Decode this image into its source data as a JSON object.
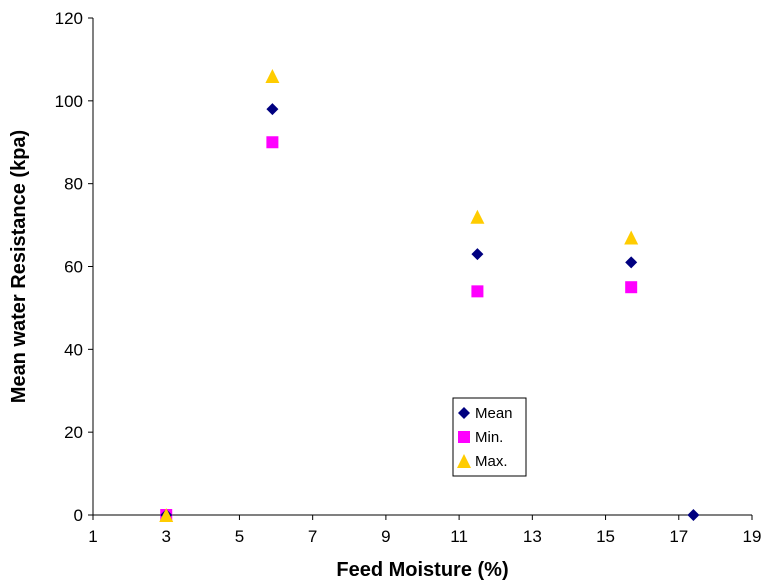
{
  "chart_data": {
    "type": "scatter",
    "title": "",
    "xlabel": "Feed Moisture (%)",
    "ylabel": "Mean water Resistance (kpa)",
    "xlim": [
      1,
      19
    ],
    "ylim": [
      0,
      120
    ],
    "xticks": [
      1,
      3,
      5,
      7,
      9,
      11,
      13,
      15,
      17,
      19
    ],
    "yticks": [
      0,
      20,
      40,
      60,
      80,
      100,
      120
    ],
    "grid": false,
    "legend_position": "center-bottom",
    "series": [
      {
        "name": "Mean",
        "marker": "diamond",
        "color": "#000080",
        "points": [
          [
            3,
            0
          ],
          [
            5.9,
            98
          ],
          [
            11.5,
            63
          ],
          [
            15.7,
            61
          ],
          [
            17.4,
            0
          ]
        ]
      },
      {
        "name": "Min.",
        "marker": "square",
        "color": "#FF00FF",
        "points": [
          [
            3,
            0
          ],
          [
            5.9,
            90
          ],
          [
            11.5,
            54
          ],
          [
            15.7,
            55
          ]
        ]
      },
      {
        "name": "Max.",
        "marker": "triangle",
        "color": "#FFCC00",
        "points": [
          [
            3,
            0
          ],
          [
            5.9,
            106
          ],
          [
            11.5,
            72
          ],
          [
            15.7,
            67
          ]
        ]
      }
    ]
  }
}
